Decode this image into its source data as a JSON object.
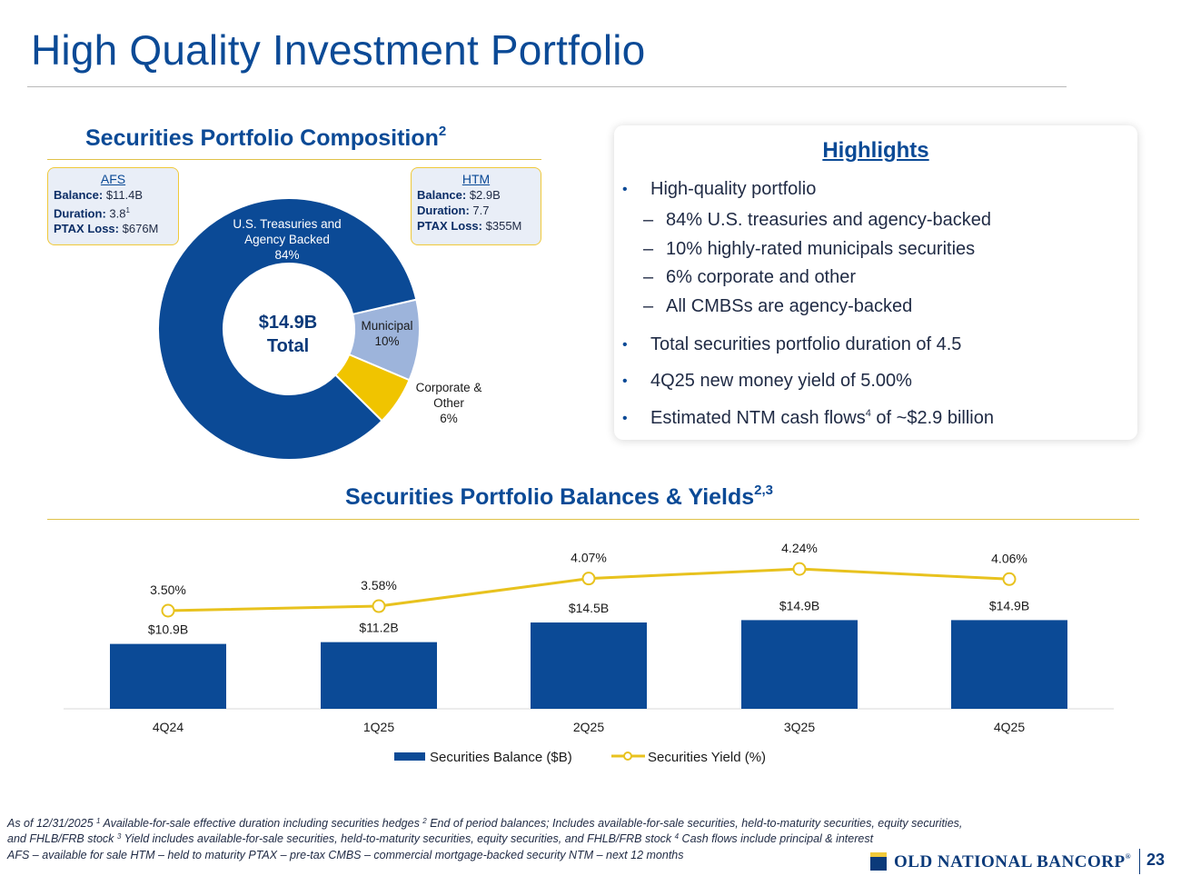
{
  "slide": {
    "title": "High Quality Investment Portfolio",
    "page_number": "23"
  },
  "composition": {
    "heading": "Securities Portfolio Composition",
    "heading_sup": "2",
    "center_line1": "$14.9B",
    "center_line2": "Total",
    "afs": {
      "head": "AFS",
      "balance_label": "Balance:",
      "balance_value": "$11.4B",
      "duration_label": "Duration:",
      "duration_value": "3.8",
      "duration_sup": "1",
      "ptax_label": "PTAX Loss:",
      "ptax_value": "$676M"
    },
    "htm": {
      "head": "HTM",
      "balance_label": "Balance:",
      "balance_value": "$2.9B",
      "duration_label": "Duration:",
      "duration_value": "7.7",
      "ptax_label": "PTAX Loss:",
      "ptax_value": "$355M"
    }
  },
  "highlights": {
    "title": "Highlights",
    "bullets": [
      "High-quality portfolio",
      "Total securities portfolio duration of 4.5",
      "4Q25 new money yield of 5.00%",
      "Estimated NTM cash flows"
    ],
    "cash_flow_sup": "4",
    "cash_flow_tail": " of ~$2.9 billion",
    "sub_items": [
      "84% U.S. treasuries and agency-backed",
      "10% highly-rated municipals securities",
      "6% corporate and other",
      "All CMBSs are agency-backed"
    ],
    "bullet_glyph": "•",
    "dash_glyph": "–"
  },
  "balances": {
    "heading": "Securities Portfolio Balances & Yields",
    "heading_sup": "2,3"
  },
  "footnotes": {
    "line1_a": "As of 12/31/2025   ",
    "line1_sup1": "1",
    "line1_b": " Available-for-sale effective duration including securities hedges   ",
    "line1_sup2": "2",
    "line1_c": " End of period balances; Includes available-for-sale securities, held-to-maturity securities, equity securities,",
    "line2_a": "and FHLB/FRB stock   ",
    "line2_sup3": "3",
    "line2_b": " Yield includes available-for-sale securities, held-to-maturity securities, equity securities, and FHLB/FRB stock   ",
    "line2_sup4": "4",
    "line2_c": " Cash flows include principal & interest",
    "line3": "AFS – available for sale   HTM – held to maturity   PTAX – pre-tax   CMBS – commercial mortgage-backed security   NTM – next 12 months"
  },
  "logo": {
    "text": "OLD NATIONAL BANCORP",
    "mark": "®"
  },
  "chart_data": [
    {
      "type": "pie",
      "title": "Securities Portfolio Composition",
      "donut": true,
      "slices": [
        {
          "label_lines": [
            "U.S. Treasuries and",
            "Agency Backed",
            "84%"
          ],
          "name": "U.S. Treasuries and Agency Backed",
          "value": 84,
          "color": "#0b4a96"
        },
        {
          "label_lines": [
            "Municipal",
            "10%"
          ],
          "name": "Municipal",
          "value": 10,
          "color": "#9db4db"
        },
        {
          "label_lines": [
            "Corporate &",
            "Other",
            "6%"
          ],
          "name": "Corporate & Other",
          "value": 6,
          "color": "#f0c400"
        }
      ]
    },
    {
      "type": "bar",
      "title": "Securities Portfolio Balances & Yields",
      "categories": [
        "4Q24",
        "1Q25",
        "2Q25",
        "3Q25",
        "4Q25"
      ],
      "series": [
        {
          "name": "Securities Balance ($B)",
          "type": "bar",
          "values": [
            10.9,
            11.2,
            14.5,
            14.9,
            14.9
          ],
          "labels": [
            "$10.9B",
            "$11.2B",
            "$14.5B",
            "$14.9B",
            "$14.9B"
          ],
          "color": "#0b4a96"
        },
        {
          "name": "Securities Yield (%)",
          "type": "line",
          "values": [
            3.5,
            3.58,
            4.07,
            4.24,
            4.06
          ],
          "labels": [
            "3.50%",
            "3.58%",
            "4.07%",
            "4.24%",
            "4.06%"
          ],
          "color": "#e8c21e"
        }
      ],
      "legend_position": "bottom"
    }
  ]
}
